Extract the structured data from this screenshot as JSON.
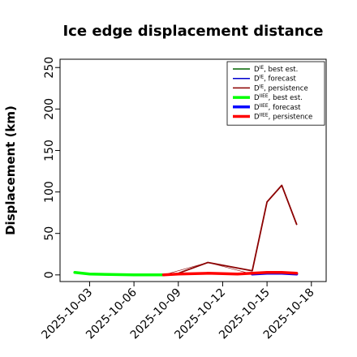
{
  "chart_data": {
    "type": "line",
    "title": "Ice edge displacement distance",
    "xlabel": "",
    "ylabel": "Displacement (km)",
    "xlim": [
      "2025-10-01",
      "2025-10-19"
    ],
    "ylim": [
      -8,
      260
    ],
    "y_ticks": [
      0,
      50,
      100,
      150,
      200,
      250
    ],
    "y_tick_labels": [
      "0",
      "50",
      "100",
      "150",
      "200",
      "250"
    ],
    "x_ticks": [
      "2025-10-03",
      "2025-10-06",
      "2025-10-09",
      "2025-10-12",
      "2025-10-15",
      "2025-10-18"
    ],
    "x_tick_labels": [
      "2025-10-03",
      "2025-10-06",
      "2025-10-09",
      "2025-10-12",
      "2025-10-15",
      "2025-10-18"
    ],
    "highlighted_x_tick": "2025-10-09",
    "highlight_color": "#228b22",
    "grid": false,
    "legend_position": "top-right",
    "series": [
      {
        "name": "D^IE, best est.",
        "legend_main": "D",
        "legend_sup": "IE",
        "legend_rest": ", best est.",
        "color": "#006400",
        "width": "thin",
        "points": []
      },
      {
        "name": "D^IE, forecast",
        "legend_main": "D",
        "legend_sup": "IE",
        "legend_rest": ", forecast",
        "color": "#0000cd",
        "width": "thin",
        "points": []
      },
      {
        "name": "D^IE, persistence",
        "legend_main": "D",
        "legend_sup": "IE",
        "legend_rest": ", persistence",
        "color": "#8b0000",
        "width": "thin",
        "points": [
          [
            "2025-10-09",
            2
          ],
          [
            "2025-10-11",
            15
          ],
          [
            "2025-10-14",
            5
          ],
          [
            "2025-10-15",
            88
          ],
          [
            "2025-10-16",
            108
          ],
          [
            "2025-10-17",
            61
          ]
        ]
      },
      {
        "name": "D^IIEE, best est.",
        "legend_main": "D",
        "legend_sup": "IIEE",
        "legend_rest": ", best est.",
        "color": "#00ff00",
        "width": "thick",
        "points": [
          [
            "2025-10-02",
            3
          ],
          [
            "2025-10-03",
            1
          ],
          [
            "2025-10-06",
            0
          ],
          [
            "2025-10-08",
            0
          ]
        ]
      },
      {
        "name": "D^IIEE, forecast",
        "legend_main": "D",
        "legend_sup": "IIEE",
        "legend_rest": ", forecast",
        "color": "#0000ff",
        "width": "thick",
        "points": [
          [
            "2025-10-14",
            1
          ],
          [
            "2025-10-15",
            2
          ],
          [
            "2025-10-16",
            2
          ],
          [
            "2025-10-17",
            1
          ]
        ]
      },
      {
        "name": "D^IIEE, persistence",
        "legend_main": "D",
        "legend_sup": "IIEE",
        "legend_rest": ", persistence",
        "color": "#ff0000",
        "width": "thick",
        "points": [
          [
            "2025-10-08",
            0
          ],
          [
            "2025-10-09",
            1
          ],
          [
            "2025-10-11",
            2
          ],
          [
            "2025-10-13",
            1
          ],
          [
            "2025-10-15",
            3
          ],
          [
            "2025-10-16",
            3
          ],
          [
            "2025-10-17",
            2
          ]
        ]
      }
    ],
    "connectors": [
      {
        "color": "#8b0000",
        "points": [
          [
            "2025-10-08",
            0
          ],
          [
            "2025-10-11",
            15
          ],
          [
            "2025-10-14",
            1
          ]
        ]
      }
    ]
  }
}
